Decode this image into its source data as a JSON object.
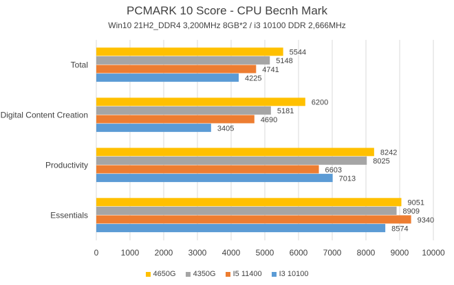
{
  "chart_data": {
    "type": "bar",
    "orientation": "horizontal",
    "title": "PCMARK 10 Score - CPU Becnh Mark",
    "subtitle": "Win10 21H2_DDR4 3,200MHz 8GB*2 / i3 10100 DDR 2,666MHz",
    "categories": [
      "Total",
      "Digital Content Creation",
      "Productivity",
      "Essentials"
    ],
    "series": [
      {
        "name": "4650G",
        "color": "#FFC000",
        "values": [
          5544,
          6200,
          8242,
          9051
        ]
      },
      {
        "name": "4350G",
        "color": "#A5A5A5",
        "values": [
          5148,
          5181,
          8025,
          8909
        ]
      },
      {
        "name": "I5 11400",
        "color": "#ED7D31",
        "values": [
          4741,
          4690,
          6603,
          9340
        ]
      },
      {
        "name": "I3 10100",
        "color": "#5B9BD5",
        "values": [
          4225,
          3405,
          7013,
          8574
        ]
      }
    ],
    "xlim": [
      0,
      10000
    ],
    "x_ticks": [
      "0",
      "1000",
      "2000",
      "3000",
      "4000",
      "5000",
      "6000",
      "7000",
      "8000",
      "9000",
      "10000"
    ],
    "grid": "vertical",
    "legend_position": "bottom"
  }
}
